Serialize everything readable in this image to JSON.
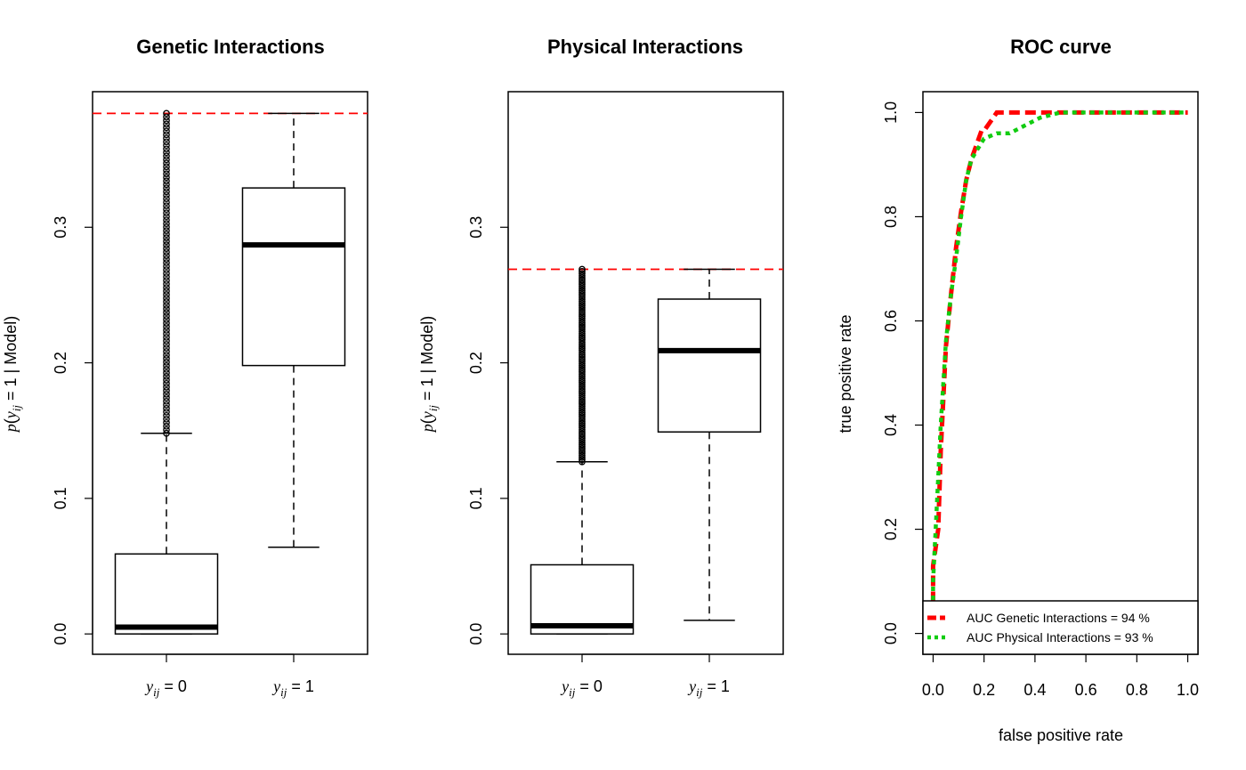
{
  "colors": {
    "genetic": "#ff0000",
    "physical": "#11cc11",
    "ref_line": "#ff0000",
    "axis": "#000000"
  },
  "chart_data": [
    {
      "type": "boxplot",
      "title": "Genetic Interactions",
      "ylabel": {
        "p": "p",
        "y": "y",
        "ij": "ij",
        "rest": " = 1 | Model)"
      },
      "ylim": [
        -0.015,
        0.4
      ],
      "yticks": [
        "0.0",
        "0.1",
        "0.2",
        "0.3"
      ],
      "reference_line": 0.384,
      "categories": [
        {
          "label_var": "y",
          "label_sub": "ij",
          "label_eq": " = 0",
          "min": 0.0,
          "q1": 0.0,
          "median": 0.005,
          "q3": 0.059,
          "max": 0.148,
          "outlier_range": [
            0.148,
            0.384
          ]
        },
        {
          "label_var": "y",
          "label_sub": "ij",
          "label_eq": " = 1",
          "min": 0.064,
          "q1": 0.198,
          "median": 0.287,
          "q3": 0.329,
          "max": 0.384
        }
      ]
    },
    {
      "type": "boxplot",
      "title": "Physical Interactions",
      "ylabel": {
        "p": "p",
        "y": "y",
        "ij": "ij",
        "rest": " = 1 | Model)"
      },
      "ylim": [
        -0.015,
        0.4
      ],
      "yticks": [
        "0.0",
        "0.1",
        "0.2",
        "0.3"
      ],
      "reference_line": 0.269,
      "categories": [
        {
          "label_var": "y",
          "label_sub": "ij",
          "label_eq": " = 0",
          "min": 0.0,
          "q1": 0.0,
          "median": 0.006,
          "q3": 0.051,
          "max": 0.127,
          "outlier_range": [
            0.127,
            0.269
          ]
        },
        {
          "label_var": "y",
          "label_sub": "ij",
          "label_eq": " = 1",
          "min": 0.01,
          "q1": 0.149,
          "median": 0.209,
          "q3": 0.247,
          "max": 0.269
        }
      ]
    },
    {
      "type": "line",
      "title": "ROC curve",
      "xlabel": "false positive rate",
      "ylabel": "true positive rate",
      "xlim": [
        -0.04,
        1.04
      ],
      "ylim": [
        -0.04,
        1.04
      ],
      "xticks": [
        "0.0",
        "0.2",
        "0.4",
        "0.6",
        "0.8",
        "1.0"
      ],
      "yticks": [
        "0.0",
        "0.2",
        "0.4",
        "0.6",
        "0.8",
        "1.0"
      ],
      "legend_position": "bottom",
      "series": [
        {
          "name": "AUC Genetic Interactions = 94 %",
          "style": "dashed",
          "points": [
            [
              0.0,
              0.06
            ],
            [
              0.0,
              0.13
            ],
            [
              0.02,
              0.2
            ],
            [
              0.03,
              0.35
            ],
            [
              0.04,
              0.45
            ],
            [
              0.05,
              0.55
            ],
            [
              0.07,
              0.65
            ],
            [
              0.09,
              0.74
            ],
            [
              0.11,
              0.81
            ],
            [
              0.13,
              0.87
            ],
            [
              0.15,
              0.91
            ],
            [
              0.19,
              0.965
            ],
            [
              0.2,
              0.965
            ],
            [
              0.25,
              1.0
            ],
            [
              0.35,
              1.0
            ],
            [
              0.5,
              1.0
            ],
            [
              0.75,
              1.0
            ],
            [
              1.0,
              1.0
            ]
          ]
        },
        {
          "name": "AUC Physical Interactions = 93 %",
          "style": "dotted",
          "points": [
            [
              0.0,
              0.03
            ],
            [
              0.0,
              0.1
            ],
            [
              0.01,
              0.2
            ],
            [
              0.02,
              0.3
            ],
            [
              0.03,
              0.4
            ],
            [
              0.04,
              0.48
            ],
            [
              0.05,
              0.56
            ],
            [
              0.07,
              0.65
            ],
            [
              0.09,
              0.72
            ],
            [
              0.11,
              0.8
            ],
            [
              0.13,
              0.87
            ],
            [
              0.15,
              0.91
            ],
            [
              0.2,
              0.95
            ],
            [
              0.25,
              0.96
            ],
            [
              0.3,
              0.96
            ],
            [
              0.38,
              0.98
            ],
            [
              0.42,
              0.99
            ],
            [
              0.5,
              1.0
            ],
            [
              0.75,
              1.0
            ],
            [
              1.0,
              1.0
            ]
          ]
        }
      ]
    }
  ]
}
